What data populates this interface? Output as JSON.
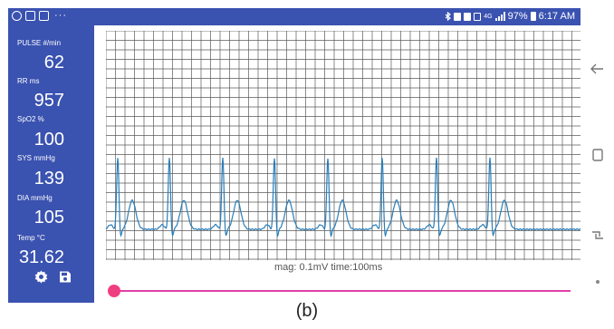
{
  "status_bar": {
    "left_icons": [
      "whatsapp-icon",
      "gallery-icon",
      "mail-icon"
    ],
    "more": "···",
    "network_label": "4G",
    "battery": "97%",
    "time": "6:17 AM"
  },
  "vitals": {
    "pulse": {
      "label": "PULSE  #/min",
      "value": "62"
    },
    "rr": {
      "label": "RR  ms",
      "value": "957"
    },
    "spo2": {
      "label": "SpO2  %",
      "value": "100"
    },
    "sys": {
      "label": "SYS  mmHg",
      "value": "139"
    },
    "dia": {
      "label": "DIA  mmHg",
      "value": "105"
    },
    "temp": {
      "label": "Temp  °C",
      "value": "31.62"
    }
  },
  "toolbar": {
    "settings_icon": "gear-icon",
    "save_icon": "save-icon"
  },
  "graph": {
    "scale_label": "mag: 0.1mV  time:100ms",
    "grid_major_color": "#5a5a5a",
    "trace_color": "#2a7db8",
    "r_peak_positions": [
      13,
      70,
      129,
      186,
      245,
      305,
      365,
      424
    ]
  },
  "slider": {
    "value": 0,
    "accent": "#ef3f80"
  },
  "nav": {
    "icons": [
      "back-icon",
      "recents-icon",
      "switch-icon",
      "dot-icon"
    ]
  },
  "caption": "(b)"
}
